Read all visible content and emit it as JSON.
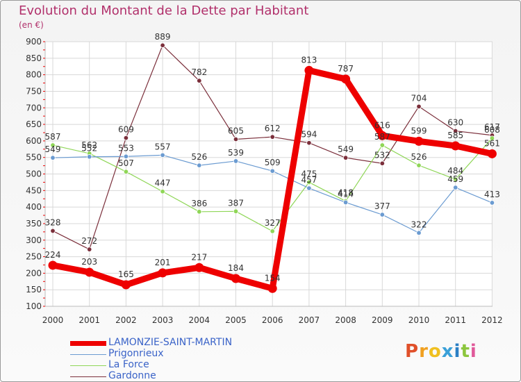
{
  "title": "Evolution du Montant de la Dette par Habitant",
  "unit": "(en €)",
  "logo": "Proxiti",
  "chart_data": {
    "type": "line",
    "title": "Evolution du Montant de la Dette par Habitant",
    "ylabel": "(en €)",
    "x": [
      "2000",
      "2001",
      "2002",
      "2003",
      "2004",
      "2005",
      "2006",
      "2007",
      "2008",
      "2009",
      "2010",
      "2011",
      "2012"
    ],
    "ylim": [
      100,
      900
    ],
    "yticks": [
      100,
      150,
      200,
      250,
      300,
      350,
      400,
      450,
      500,
      550,
      600,
      650,
      700,
      750,
      800,
      850,
      900
    ],
    "grid": true,
    "legend_position": "bottom-left",
    "series": [
      {
        "name": "LAMONZIE-SAINT-MARTIN",
        "color": "#ee0000",
        "values": [
          224,
          203,
          165,
          201,
          217,
          184,
          154,
          813,
          787,
          616,
          599,
          585,
          561
        ]
      },
      {
        "name": "Prigonrieux",
        "color": "#6b9bd1",
        "values": [
          549,
          552,
          553,
          557,
          526,
          539,
          509,
          457,
          414,
          377,
          322,
          459,
          413
        ]
      },
      {
        "name": "La Force",
        "color": "#8fd657",
        "values": [
          587,
          562,
          507,
          447,
          386,
          387,
          327,
          475,
          418,
          587,
          526,
          484,
          608
        ]
      },
      {
        "name": "Gardonne",
        "color": "#7b2f3b",
        "values": [
          328,
          272,
          609,
          889,
          782,
          605,
          612,
          594,
          549,
          532,
          704,
          630,
          617
        ]
      }
    ]
  }
}
